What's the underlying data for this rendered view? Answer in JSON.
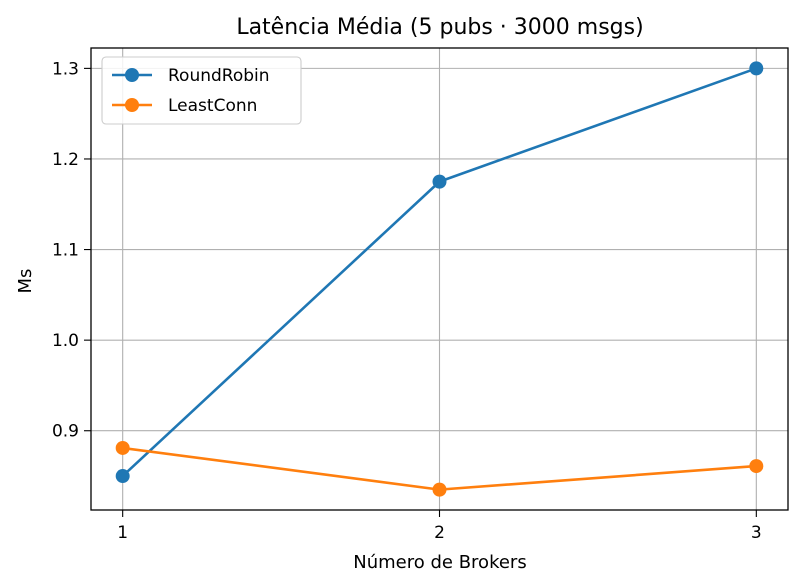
{
  "chart_data": {
    "type": "line",
    "title": "Latência Média (5 pubs · 3000 msgs)",
    "xlabel": "Número de Brokers",
    "ylabel": "Ms",
    "x": [
      1,
      2,
      3
    ],
    "xticks": [
      "1",
      "2",
      "3"
    ],
    "yticks": [
      0.9,
      1.0,
      1.1,
      1.2,
      1.3
    ],
    "ytick_labels": [
      "0.9",
      "1.0",
      "1.1",
      "1.2",
      "1.3"
    ],
    "xlim": [
      0.9,
      3.1
    ],
    "ylim": [
      0.8125,
      1.3225
    ],
    "grid": true,
    "legend_position": "upper-left",
    "series": [
      {
        "name": "RoundRobin",
        "color": "#1f77b4",
        "values": [
          0.85,
          1.175,
          1.3
        ]
      },
      {
        "name": "LeastConn",
        "color": "#ff7f0e",
        "values": [
          0.881,
          0.835,
          0.861
        ]
      }
    ]
  }
}
